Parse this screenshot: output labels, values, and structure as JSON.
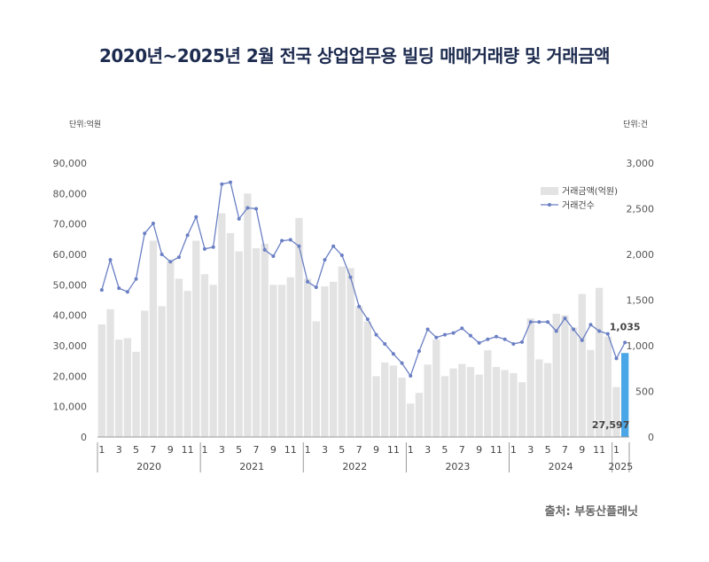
{
  "title": "2020년~2025년 2월 전국 상업업무용 빌딩 매매거래량 및 거래금액",
  "source": "출처: 부동산플래닛",
  "chart_data": {
    "type": "bar",
    "title": "2020년~2025년 2월 전국 상업업무용 빌딩 매매거래량 및 거래금액",
    "left_unit": "단위:억원",
    "right_unit": "단위:건",
    "left_ticks": [
      "0",
      "10,000",
      "20,000",
      "30,000",
      "40,000",
      "50,000",
      "60,000",
      "70,000",
      "80,000",
      "90,000"
    ],
    "right_ticks": [
      "0",
      "500",
      "1,000",
      "1,500",
      "2,000",
      "2,500",
      "3,000"
    ],
    "ylim_left": [
      0,
      90000
    ],
    "ylim_right": [
      0,
      3000
    ],
    "x_tick_labels": [
      "1",
      "3",
      "5",
      "7",
      "9",
      "11",
      "1",
      "3",
      "5",
      "7",
      "9",
      "11",
      "1",
      "3",
      "5",
      "7",
      "9",
      "11",
      "1",
      "3",
      "5",
      "7",
      "9",
      "11",
      "1",
      "3",
      "5",
      "7",
      "9",
      "11",
      "1"
    ],
    "years": [
      "2020",
      "2021",
      "2022",
      "2023",
      "2024",
      "2025"
    ],
    "months_per_year": [
      12,
      12,
      12,
      12,
      12,
      2
    ],
    "grid": false,
    "legend_position": "upper-right",
    "series": [
      {
        "name": "거래금액(억원)",
        "type": "bar",
        "axis": "left",
        "color": "#e3e3e3",
        "highlight_color": "#4aa6e6",
        "values": [
          37000,
          42000,
          32000,
          32500,
          28000,
          41500,
          64500,
          43000,
          58000,
          52000,
          48000,
          64500,
          53500,
          50000,
          73500,
          67000,
          61000,
          80000,
          62000,
          63500,
          50000,
          50000,
          52500,
          72000,
          52000,
          38000,
          49500,
          51000,
          56000,
          55500,
          43000,
          38000,
          20000,
          24500,
          23500,
          19500,
          11000,
          14500,
          23800,
          32000,
          20000,
          22500,
          24000,
          23000,
          20500,
          28500,
          23000,
          22000,
          21000,
          18000,
          39000,
          25500,
          24300,
          40500,
          40000,
          36000,
          47000,
          28600,
          49000,
          33000,
          16400,
          27597
        ]
      },
      {
        "name": "거래건수",
        "type": "line",
        "axis": "right",
        "color": "#6a7fc4",
        "values": [
          1610,
          1940,
          1630,
          1590,
          1730,
          2230,
          2340,
          2000,
          1920,
          1970,
          2210,
          2410,
          2060,
          2080,
          2770,
          2790,
          2390,
          2510,
          2500,
          2050,
          1980,
          2150,
          2160,
          2090,
          1700,
          1640,
          1940,
          2090,
          1990,
          1750,
          1430,
          1290,
          1120,
          1020,
          910,
          810,
          670,
          940,
          1180,
          1090,
          1120,
          1140,
          1190,
          1110,
          1030,
          1070,
          1100,
          1070,
          1020,
          1040,
          1260,
          1260,
          1260,
          1160,
          1300,
          1180,
          1060,
          1230,
          1160,
          1130,
          860,
          1035
        ]
      }
    ],
    "data_labels": [
      {
        "series": "거래건수",
        "index": 61,
        "text": "1,035"
      },
      {
        "series": "거래금액(억원)",
        "index": 61,
        "text": "27,597"
      }
    ]
  }
}
